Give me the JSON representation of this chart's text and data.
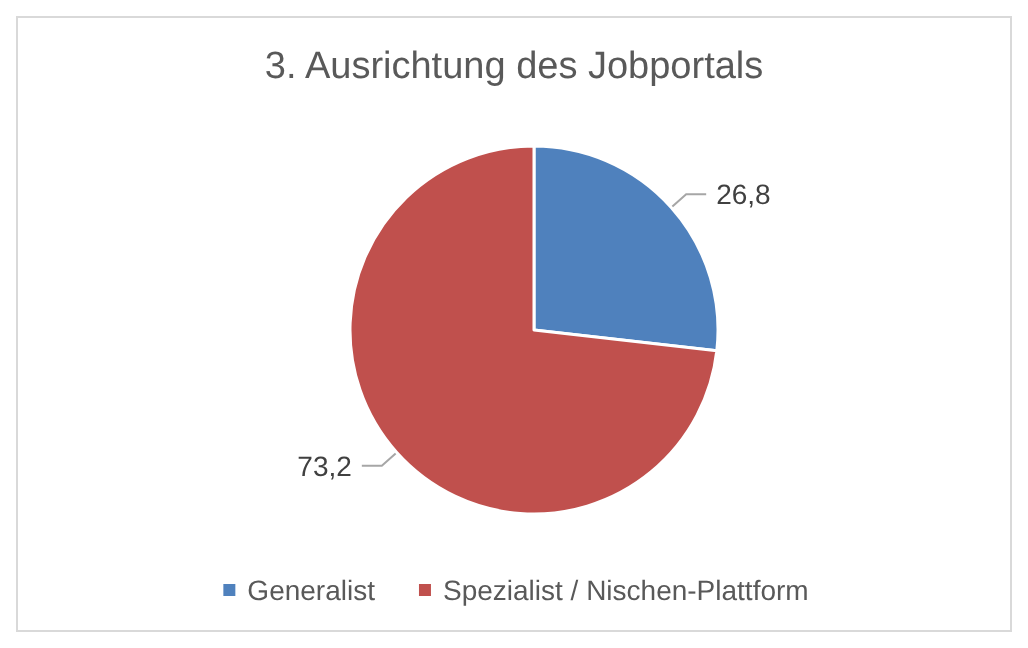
{
  "chart_data": {
    "type": "pie",
    "title": "3. Ausrichtung des Jobportals",
    "categories": [
      "Generalist",
      "Spezialist / Nischen-Plattform"
    ],
    "values": [
      26.8,
      73.2
    ],
    "value_labels": [
      "26,8",
      "73,2"
    ],
    "colors": [
      "#4f81bd",
      "#c0504d"
    ],
    "legend": "bottom"
  }
}
